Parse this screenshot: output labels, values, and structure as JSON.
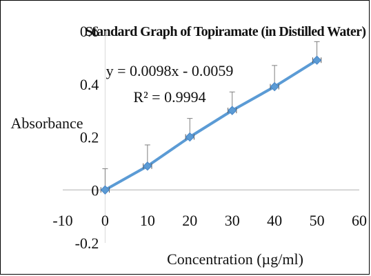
{
  "chart_data": {
    "type": "scatter",
    "title": "Standard Graph of Topiramate (in Distilled Water)",
    "xlabel": "Concentration (µg/ml)",
    "ylabel": "Absorbance",
    "xlim": [
      -10,
      60
    ],
    "ylim": [
      -0.2,
      0.6
    ],
    "x_ticks": [
      -10,
      0,
      10,
      20,
      30,
      40,
      50,
      60
    ],
    "y_ticks": [
      -0.2,
      0,
      0.2,
      0.4,
      0.6
    ],
    "x_tick_labels": [
      "-10",
      "0",
      "10",
      "20",
      "30",
      "40",
      "50",
      "60"
    ],
    "y_tick_labels": [
      "-0.2",
      "0",
      "0.2",
      "0.4",
      "0.6"
    ],
    "grid": false,
    "legend": "none",
    "series": [
      {
        "x": [
          0,
          10,
          20,
          30,
          40,
          50
        ],
        "y": [
          0.0,
          0.09,
          0.2,
          0.3,
          0.39,
          0.49
        ],
        "y_error": [
          0.08,
          0.08,
          0.07,
          0.07,
          0.08,
          0.07
        ],
        "x_error": [
          1,
          1,
          1,
          1,
          1,
          1
        ],
        "color": "#5b9bd5",
        "marker": "diamond",
        "line": true
      }
    ],
    "annotations": {
      "equation": "y = 0.0098x - 0.0059",
      "r2": "R² = 0.9994"
    }
  }
}
